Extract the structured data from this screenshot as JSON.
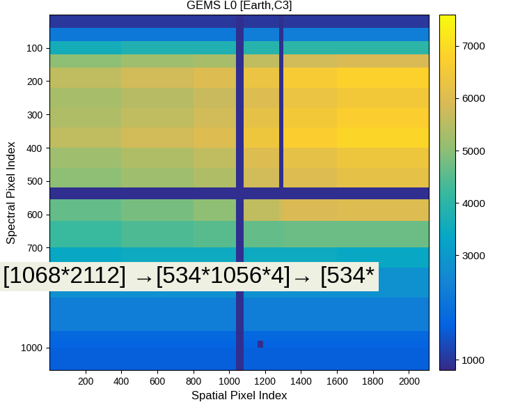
{
  "chart_data": {
    "type": "heatmap",
    "title": "GEMS L0 [Earth,C3]",
    "x_label": "Spatial Pixel Index",
    "y_label": "Spectral Pixel Index",
    "annotations": [
      "[1068*2112] →[534*1056*4]→ [534*"
    ],
    "xlim": [
      0,
      2112
    ],
    "ylim": [
      1068,
      0
    ],
    "xticks": [
      200,
      400,
      600,
      800,
      1000,
      1200,
      1400,
      1600,
      1800,
      2000
    ],
    "yticks": [
      100,
      200,
      300,
      400,
      500,
      600,
      700,
      1000
    ],
    "x_edges": [
      0,
      400,
      800,
      1040,
      1080,
      1160,
      1190,
      1280,
      1300,
      1600,
      2112
    ],
    "y_edges": [
      0,
      40,
      80,
      120,
      160,
      220,
      280,
      340,
      400,
      460,
      520,
      555,
      620,
      700,
      760,
      850,
      950,
      980,
      1000,
      1068
    ],
    "cells": [
      [
        1000,
        1000,
        1000,
        900,
        1000,
        1000,
        1000,
        900,
        1000,
        1000
      ],
      [
        2200,
        2200,
        2200,
        900,
        2300,
        2300,
        2300,
        900,
        2300,
        2300
      ],
      [
        3600,
        3800,
        3800,
        900,
        3900,
        3900,
        3900,
        900,
        4000,
        4000
      ],
      [
        5000,
        5200,
        5300,
        900,
        5600,
        5600,
        5600,
        900,
        5800,
        5900
      ],
      [
        5600,
        5800,
        6000,
        900,
        6300,
        6300,
        6300,
        900,
        6600,
        6800
      ],
      [
        5300,
        5500,
        5700,
        900,
        6000,
        6000,
        6000,
        900,
        6300,
        6500
      ],
      [
        5400,
        5600,
        5800,
        900,
        6200,
        6200,
        6200,
        900,
        6500,
        6700
      ],
      [
        5600,
        5800,
        6000,
        900,
        6400,
        6400,
        6400,
        900,
        6700,
        6900
      ],
      [
        5200,
        5400,
        5600,
        900,
        6000,
        6000,
        6000,
        900,
        6200,
        6400
      ],
      [
        5000,
        5200,
        5400,
        900,
        5800,
        5800,
        5800,
        900,
        6000,
        6200
      ],
      [
        900,
        900,
        900,
        900,
        900,
        900,
        900,
        900,
        900,
        900
      ],
      [
        4600,
        4800,
        5000,
        900,
        5600,
        5600,
        5600,
        5800,
        5900,
        6000
      ],
      [
        4200,
        4400,
        4500,
        900,
        4600,
        4600,
        4600,
        4600,
        4700,
        4700
      ],
      [
        3400,
        3500,
        3500,
        900,
        3500,
        3500,
        3500,
        3500,
        3500,
        3400
      ],
      [
        2800,
        2800,
        2800,
        900,
        2800,
        2800,
        2800,
        2800,
        2800,
        2800
      ],
      [
        2300,
        2300,
        2300,
        900,
        2300,
        2300,
        2300,
        2300,
        2300,
        2300
      ],
      [
        1800,
        1800,
        1800,
        900,
        1800,
        1800,
        1800,
        1800,
        1800,
        1800
      ],
      [
        1700,
        1700,
        1700,
        900,
        1700,
        900,
        1700,
        1700,
        1700,
        1700
      ],
      [
        1600,
        1600,
        1600,
        900,
        1600,
        1600,
        1600,
        1600,
        1600,
        1600
      ]
    ],
    "color_range": [
      800,
      7600
    ],
    "colorbar_ticks": [
      1000,
      3000,
      4000,
      5000,
      6000,
      7000
    ]
  }
}
